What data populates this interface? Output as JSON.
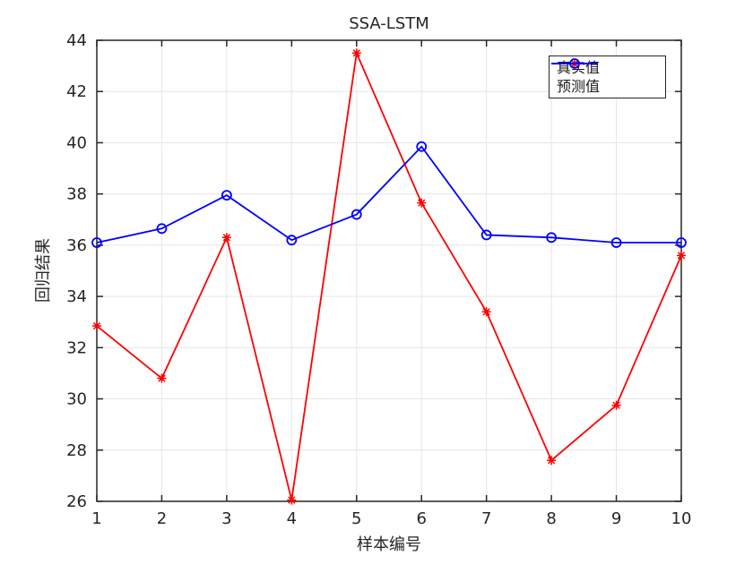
{
  "title": "SSA-LSTM",
  "chart_data": {
    "type": "line",
    "title": "SSA-LSTM",
    "xlabel": "样本编号",
    "ylabel": "回归结果",
    "x": [
      1,
      2,
      3,
      4,
      5,
      6,
      7,
      8,
      9,
      10
    ],
    "series": [
      {
        "name": "真实值",
        "color": "#ff0000",
        "marker": "asterisk",
        "values": [
          32.85,
          30.8,
          36.3,
          26.05,
          43.5,
          37.65,
          33.4,
          27.6,
          29.75,
          35.6
        ]
      },
      {
        "name": "预测值",
        "color": "#0000ff",
        "marker": "circle",
        "values": [
          36.1,
          36.65,
          37.95,
          36.2,
          37.2,
          39.85,
          36.4,
          36.3,
          36.1,
          36.1
        ]
      }
    ],
    "xlim": [
      1,
      10
    ],
    "ylim": [
      26,
      44
    ],
    "xticks": [
      1,
      2,
      3,
      4,
      5,
      6,
      7,
      8,
      9,
      10
    ],
    "yticks": [
      26,
      28,
      30,
      32,
      34,
      36,
      38,
      40,
      42,
      44
    ],
    "grid": true,
    "legend_position": "northeast",
    "colors": {
      "grid": "#e6e6e6",
      "axis": "#262626",
      "background": "#ffffff"
    }
  }
}
